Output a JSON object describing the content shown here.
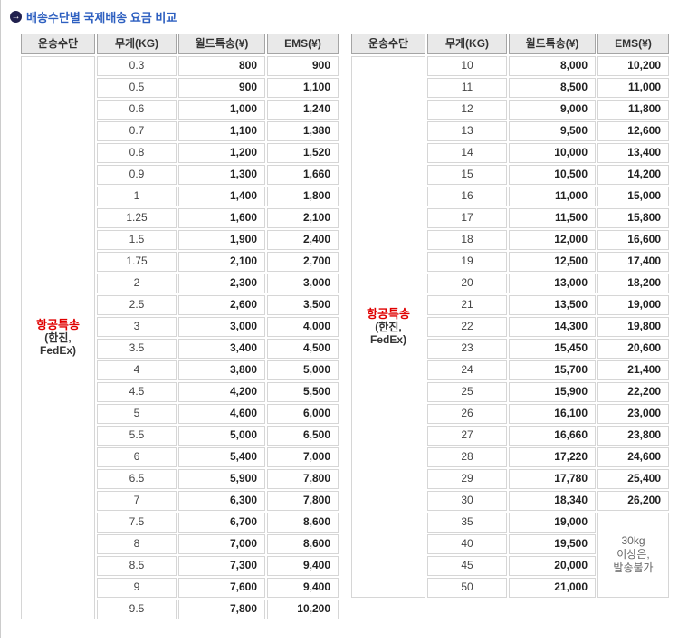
{
  "title": {
    "icon": "→",
    "text": "배송수단별 국제배송 요금 비교"
  },
  "table_headers": [
    "운송수단",
    "무게(KG)",
    "월드특송(¥)",
    "EMS(¥)"
  ],
  "carrier": {
    "name": "항공특송",
    "lines": [
      "(한진,",
      "FedEx)"
    ]
  },
  "tables": [
    {
      "id": "light-weights",
      "rows": [
        [
          "0.3",
          "800",
          "900"
        ],
        [
          "0.5",
          "900",
          "1,100"
        ],
        [
          "0.6",
          "1,000",
          "1,240"
        ],
        [
          "0.7",
          "1,100",
          "1,380"
        ],
        [
          "0.8",
          "1,200",
          "1,520"
        ],
        [
          "0.9",
          "1,300",
          "1,660"
        ],
        [
          "1",
          "1,400",
          "1,800"
        ],
        [
          "1.25",
          "1,600",
          "2,100"
        ],
        [
          "1.5",
          "1,900",
          "2,400"
        ],
        [
          "1.75",
          "2,100",
          "2,700"
        ],
        [
          "2",
          "2,300",
          "3,000"
        ],
        [
          "2.5",
          "2,600",
          "3,500"
        ],
        [
          "3",
          "3,000",
          "4,000"
        ],
        [
          "3.5",
          "3,400",
          "4,500"
        ],
        [
          "4",
          "3,800",
          "5,000"
        ],
        [
          "4.5",
          "4,200",
          "5,500"
        ],
        [
          "5",
          "4,600",
          "6,000"
        ],
        [
          "5.5",
          "5,000",
          "6,500"
        ],
        [
          "6",
          "5,400",
          "7,000"
        ],
        [
          "6.5",
          "5,900",
          "7,800"
        ],
        [
          "7",
          "6,300",
          "7,800"
        ],
        [
          "7.5",
          "6,700",
          "8,600"
        ],
        [
          "8",
          "7,000",
          "8,600"
        ],
        [
          "8.5",
          "7,300",
          "9,400"
        ],
        [
          "9",
          "7,600",
          "9,400"
        ],
        [
          "9.5",
          "7,800",
          "10,200"
        ]
      ]
    },
    {
      "id": "heavy-weights",
      "rows": [
        [
          "10",
          "8,000",
          "10,200"
        ],
        [
          "11",
          "8,500",
          "11,000"
        ],
        [
          "12",
          "9,000",
          "11,800"
        ],
        [
          "13",
          "9,500",
          "12,600"
        ],
        [
          "14",
          "10,000",
          "13,400"
        ],
        [
          "15",
          "10,500",
          "14,200"
        ],
        [
          "16",
          "11,000",
          "15,000"
        ],
        [
          "17",
          "11,500",
          "15,800"
        ],
        [
          "18",
          "12,000",
          "16,600"
        ],
        [
          "19",
          "12,500",
          "17,400"
        ],
        [
          "20",
          "13,000",
          "18,200"
        ],
        [
          "21",
          "13,500",
          "19,000"
        ],
        [
          "22",
          "14,300",
          "19,800"
        ],
        [
          "23",
          "15,450",
          "20,600"
        ],
        [
          "24",
          "15,700",
          "21,400"
        ],
        [
          "25",
          "15,900",
          "22,200"
        ],
        [
          "26",
          "16,100",
          "23,000"
        ],
        [
          "27",
          "16,660",
          "23,800"
        ],
        [
          "28",
          "17,220",
          "24,600"
        ],
        [
          "29",
          "17,780",
          "25,400"
        ],
        [
          "30",
          "18,340",
          "26,200"
        ],
        [
          "35",
          "19,000",
          null
        ],
        [
          "40",
          "19,500",
          null
        ],
        [
          "45",
          "20,000",
          null
        ],
        [
          "50",
          "21,000",
          null
        ]
      ],
      "merged_ems_note": {
        "start_weight": "35",
        "rowspan": 4,
        "lines": [
          "30kg",
          "이상은,",
          "발송불가"
        ]
      }
    }
  ],
  "colors": {
    "title_blue": "#2d5fc0",
    "carrier_red": "#e00000",
    "header_bg": "#e9e9e9",
    "weight_bg": "#ffffcc",
    "carrier_bg": "#f8eeee"
  }
}
